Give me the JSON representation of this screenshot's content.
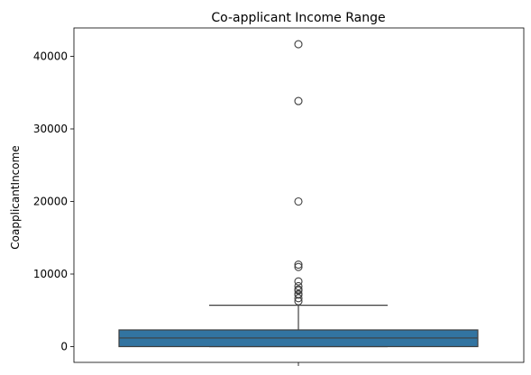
{
  "chart_data": {
    "type": "box",
    "title": "Co-applicant Income Range",
    "xlabel": "",
    "ylabel": "CoapplicantIncome",
    "ylim": [
      -2000,
      44000
    ],
    "y_ticks": [
      0,
      10000,
      20000,
      30000,
      40000
    ],
    "y_tick_labels": [
      "0",
      "10000",
      "20000",
      "30000",
      "40000"
    ],
    "grid": false,
    "legend": "none",
    "series": [
      {
        "box_color": "#3274a1",
        "line_color": "#3f3f3f",
        "whisker_low": 0,
        "q1": 0,
        "median": 1190,
        "q3": 2300,
        "whisker_high": 5700,
        "outliers": [
          41667,
          33837,
          20000,
          11300,
          10968,
          8980,
          8333,
          7873,
          7750,
          7250,
          7166,
          6667,
          6250
        ]
      }
    ]
  }
}
